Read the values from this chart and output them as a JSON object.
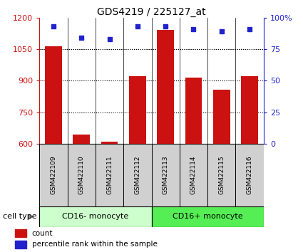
{
  "title": "GDS4219 / 225127_at",
  "samples": [
    "GSM422109",
    "GSM422110",
    "GSM422111",
    "GSM422112",
    "GSM422113",
    "GSM422114",
    "GSM422115",
    "GSM422116"
  ],
  "counts": [
    1063,
    643,
    608,
    920,
    1140,
    915,
    858,
    920
  ],
  "percentiles": [
    93,
    84,
    83,
    93,
    93,
    91,
    89,
    91
  ],
  "ylim_left": [
    600,
    1200
  ],
  "ylim_right": [
    0,
    100
  ],
  "yticks_left": [
    600,
    750,
    900,
    1050,
    1200
  ],
  "yticks_right": [
    0,
    25,
    50,
    75,
    100
  ],
  "ytick_labels_right": [
    "0",
    "25",
    "50",
    "75",
    "100%"
  ],
  "bar_color": "#cc1111",
  "dot_color": "#2222cc",
  "bar_bottom": 600,
  "groups": [
    {
      "label": "CD16- monocyte",
      "indices": [
        0,
        1,
        2,
        3
      ],
      "color": "#ccffcc"
    },
    {
      "label": "CD16+ monocyte",
      "indices": [
        4,
        5,
        6,
        7
      ],
      "color": "#55ee55"
    }
  ],
  "group_label": "cell type",
  "legend_count_label": "count",
  "legend_pct_label": "percentile rank within the sample",
  "title_fontsize": 10,
  "tick_fontsize": 8,
  "left_tick_color": "#cc1111",
  "right_tick_color": "#2222cc",
  "grid_linestyle": "dotted",
  "grid_color": "black",
  "grid_linewidth": 0.8,
  "bar_width": 0.6,
  "sample_box_color": "#d0d0d0",
  "plot_bg_color": "#ffffff",
  "fig_bg_color": "#ffffff"
}
